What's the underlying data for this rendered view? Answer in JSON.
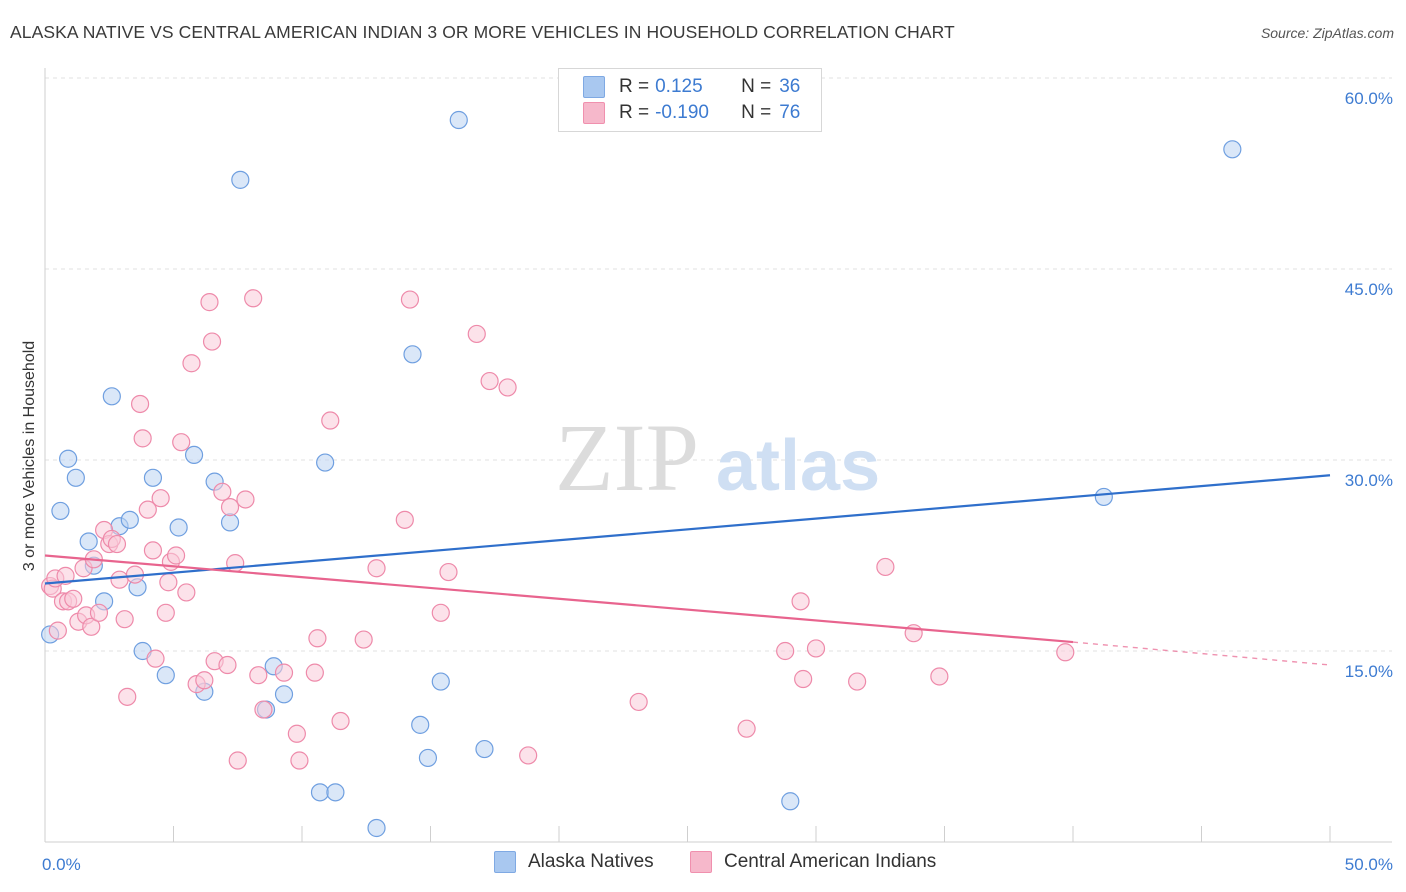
{
  "header": {
    "title": "ALASKA NATIVE VS CENTRAL AMERICAN INDIAN 3 OR MORE VEHICLES IN HOUSEHOLD CORRELATION CHART",
    "source": "Source: ZipAtlas.com"
  },
  "watermark": {
    "zip": "ZIP",
    "atlas": "atlas"
  },
  "legend_top": {
    "rows": [
      {
        "r_label": "R =",
        "r_value": "0.125",
        "n_label": "N =",
        "n_value": "36",
        "color": "#a9c8f0"
      },
      {
        "r_label": "R =",
        "r_value": "-0.190",
        "n_label": "N =",
        "n_value": "76",
        "color": "#f6b8cb"
      }
    ]
  },
  "legend_bottom": {
    "items": [
      {
        "label": "Alaska Natives",
        "color": "#a9c8f0"
      },
      {
        "label": "Central American Indians",
        "color": "#f6b8cb"
      }
    ]
  },
  "chart_data": {
    "type": "scatter",
    "title": "ALASKA NATIVE VS CENTRAL AMERICAN INDIAN 3 OR MORE VEHICLES IN HOUSEHOLD CORRELATION CHART",
    "xlabel": "",
    "ylabel": "3 or more Vehicles in Household",
    "xlim": [
      0,
      50
    ],
    "ylim": [
      0,
      60
    ],
    "x_tick_labels": [
      {
        "value": 0,
        "label": "0.0%"
      },
      {
        "value": 50,
        "label": "50.0%"
      }
    ],
    "y_tick_labels": [
      {
        "value": 15,
        "label": "15.0%"
      },
      {
        "value": 30,
        "label": "30.0%"
      },
      {
        "value": 45,
        "label": "45.0%"
      },
      {
        "value": 60,
        "label": "60.0%"
      }
    ],
    "grid": true,
    "legend_position": "top-center",
    "series": [
      {
        "name": "Alaska Natives",
        "color": "#6f9fe0",
        "fill": "#bcd4f3",
        "trend": {
          "x": [
            0,
            50
          ],
          "y": [
            20.3,
            28.8
          ],
          "color": "#2f6fcb"
        },
        "points": [
          [
            0.2,
            16.3
          ],
          [
            0.6,
            26.0
          ],
          [
            0.9,
            30.1
          ],
          [
            1.2,
            28.6
          ],
          [
            1.7,
            23.6
          ],
          [
            1.9,
            21.7
          ],
          [
            2.3,
            18.9
          ],
          [
            2.6,
            35.0
          ],
          [
            2.9,
            24.8
          ],
          [
            3.3,
            25.3
          ],
          [
            3.6,
            20.0
          ],
          [
            3.8,
            15.0
          ],
          [
            4.2,
            28.6
          ],
          [
            4.7,
            13.1
          ],
          [
            5.2,
            24.7
          ],
          [
            5.8,
            30.4
          ],
          [
            6.2,
            11.8
          ],
          [
            6.6,
            28.3
          ],
          [
            7.2,
            25.1
          ],
          [
            7.6,
            52.0
          ],
          [
            8.6,
            10.4
          ],
          [
            8.9,
            13.8
          ],
          [
            9.3,
            11.6
          ],
          [
            10.7,
            3.9
          ],
          [
            10.9,
            29.8
          ],
          [
            11.3,
            3.9
          ],
          [
            12.9,
            1.1
          ],
          [
            14.3,
            38.3
          ],
          [
            14.6,
            9.2
          ],
          [
            14.9,
            6.6
          ],
          [
            15.4,
            12.6
          ],
          [
            16.1,
            56.7
          ],
          [
            17.1,
            7.3
          ],
          [
            29.0,
            3.2
          ],
          [
            41.2,
            27.1
          ],
          [
            46.2,
            54.4
          ]
        ]
      },
      {
        "name": "Central American Indians",
        "color": "#ee8aaa",
        "fill": "#f9cad8",
        "trend": {
          "x": [
            0,
            40
          ],
          "y": [
            22.5,
            15.7
          ],
          "color": "#e8648e",
          "dashed_extension_to_x": 50,
          "dashed_extension_y": 13.9
        },
        "points": [
          [
            0.2,
            20.1
          ],
          [
            0.3,
            19.9
          ],
          [
            0.4,
            20.7
          ],
          [
            0.5,
            16.6
          ],
          [
            0.7,
            18.9
          ],
          [
            0.8,
            20.9
          ],
          [
            0.9,
            18.9
          ],
          [
            1.1,
            19.1
          ],
          [
            1.3,
            17.3
          ],
          [
            1.5,
            21.5
          ],
          [
            1.6,
            17.8
          ],
          [
            1.8,
            16.9
          ],
          [
            1.9,
            22.2
          ],
          [
            2.1,
            18.0
          ],
          [
            2.3,
            24.5
          ],
          [
            2.5,
            23.4
          ],
          [
            2.6,
            23.8
          ],
          [
            2.8,
            23.4
          ],
          [
            2.9,
            20.6
          ],
          [
            3.1,
            17.5
          ],
          [
            3.2,
            11.4
          ],
          [
            3.5,
            21.0
          ],
          [
            3.7,
            34.4
          ],
          [
            3.8,
            31.7
          ],
          [
            4.0,
            26.1
          ],
          [
            4.2,
            22.9
          ],
          [
            4.3,
            14.4
          ],
          [
            4.5,
            27.0
          ],
          [
            4.7,
            18.0
          ],
          [
            4.8,
            20.4
          ],
          [
            4.9,
            22.0
          ],
          [
            5.1,
            22.5
          ],
          [
            5.3,
            31.4
          ],
          [
            5.5,
            19.6
          ],
          [
            5.7,
            37.6
          ],
          [
            5.9,
            12.4
          ],
          [
            6.2,
            12.7
          ],
          [
            6.4,
            42.4
          ],
          [
            6.5,
            39.3
          ],
          [
            6.6,
            14.2
          ],
          [
            6.9,
            27.5
          ],
          [
            7.1,
            13.9
          ],
          [
            7.2,
            26.3
          ],
          [
            7.4,
            21.9
          ],
          [
            7.5,
            6.4
          ],
          [
            7.8,
            26.9
          ],
          [
            8.1,
            42.7
          ],
          [
            8.3,
            13.1
          ],
          [
            8.5,
            10.4
          ],
          [
            9.3,
            13.3
          ],
          [
            9.8,
            8.5
          ],
          [
            9.9,
            6.4
          ],
          [
            10.5,
            13.3
          ],
          [
            10.6,
            16.0
          ],
          [
            11.1,
            33.1
          ],
          [
            11.5,
            9.5
          ],
          [
            12.4,
            15.9
          ],
          [
            12.9,
            21.5
          ],
          [
            14.0,
            25.3
          ],
          [
            14.2,
            42.6
          ],
          [
            15.4,
            18.0
          ],
          [
            15.7,
            21.2
          ],
          [
            16.8,
            39.9
          ],
          [
            17.3,
            36.2
          ],
          [
            18.0,
            35.7
          ],
          [
            18.8,
            6.8
          ],
          [
            23.1,
            11.0
          ],
          [
            27.3,
            8.9
          ],
          [
            28.8,
            15.0
          ],
          [
            29.4,
            18.9
          ],
          [
            29.5,
            12.8
          ],
          [
            30.0,
            15.2
          ],
          [
            31.6,
            12.6
          ],
          [
            32.7,
            21.6
          ],
          [
            33.8,
            16.4
          ],
          [
            34.8,
            13.0
          ],
          [
            39.7,
            14.9
          ]
        ]
      }
    ]
  }
}
